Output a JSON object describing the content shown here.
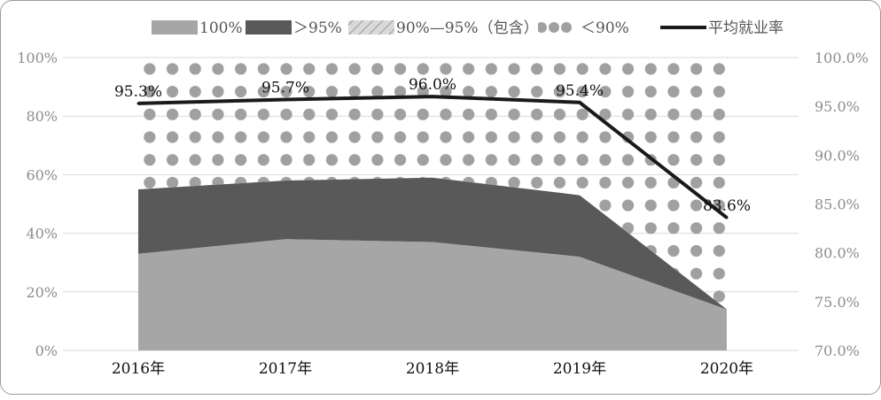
{
  "chart_data": {
    "type": "area",
    "categories": [
      "2016年",
      "2017年",
      "2018年",
      "2019年",
      "2020年"
    ],
    "stacked": true,
    "series": [
      {
        "name": "100%",
        "type": "area",
        "axis": "left",
        "values": [
          33,
          38,
          37,
          32,
          14
        ],
        "color": "#a6a6a6",
        "pattern": "solid"
      },
      {
        "name": "＞95%",
        "type": "area",
        "axis": "left",
        "values": [
          22,
          20,
          22,
          21,
          0
        ],
        "color": "#595959",
        "pattern": "solid"
      },
      {
        "name": "90%—95%（包含）",
        "type": "area",
        "axis": "left",
        "values": [
          0,
          0,
          0,
          0,
          0
        ],
        "color": "#d0d0d0",
        "pattern": "diagonal"
      },
      {
        "name": "＜90%",
        "type": "area",
        "axis": "left",
        "values": [
          45,
          42,
          41,
          47,
          86
        ],
        "color": "#a0a0a0",
        "pattern": "dots"
      },
      {
        "name": "平均就业率",
        "type": "line",
        "axis": "right",
        "values": [
          95.3,
          95.7,
          96.0,
          95.4,
          83.6
        ],
        "labels": [
          "95.3%",
          "95.7%",
          "96.0%",
          "95.4%",
          "83.6%"
        ],
        "color": "#1a1a1a"
      }
    ],
    "left_axis": {
      "min": 0,
      "max": 100,
      "ticks": [
        "0%",
        "20%",
        "40%",
        "60%",
        "80%",
        "100%"
      ]
    },
    "right_axis": {
      "min": 70,
      "max": 100,
      "ticks": [
        "70.0%",
        "75.0%",
        "80.0%",
        "85.0%",
        "90.0%",
        "95.0%",
        "100.0%"
      ]
    },
    "title": "",
    "xlabel": "",
    "ylabel": "",
    "grid": true,
    "legend_position": "top"
  }
}
